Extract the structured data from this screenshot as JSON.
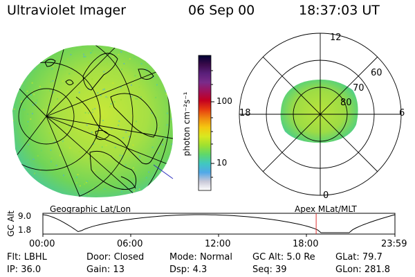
{
  "header": {
    "title": "Ultraviolet Imager",
    "date": "06 Sep 00",
    "time": "18:37:03 UT"
  },
  "colorbar": {
    "label": "photon cm⁻²s⁻¹",
    "ticks": [
      "100",
      "10"
    ],
    "stops": [
      "#000033",
      "#3a0a4a",
      "#5a1f7a",
      "#7a2b8a",
      "#a0115a",
      "#c40020",
      "#e63c10",
      "#f08a10",
      "#f4c810",
      "#d8e820",
      "#9ee030",
      "#5fd86a",
      "#40c8c0",
      "#50a8e8",
      "#c8c8d8",
      "#ffffff"
    ]
  },
  "polar": {
    "labels": {
      "top": "12",
      "bottom": "0",
      "left": "18",
      "right": "6"
    },
    "lat_labels": [
      "60",
      "70",
      "80"
    ]
  },
  "panels": {
    "left_caption": "Geographic Lat/Lon",
    "right_caption": "Apex MLat/MLT"
  },
  "altitude_plot": {
    "ylabel": "GC Alt",
    "yticks": [
      "9.0",
      "1.8"
    ],
    "xticks": [
      "00:00",
      "06:00",
      "12:00",
      "18:00",
      "23:59"
    ],
    "marker_time": "18:37"
  },
  "status": {
    "row1": [
      {
        "label": "Flt:",
        "value": "LBHL"
      },
      {
        "label": "Door:",
        "value": "Closed"
      },
      {
        "label": "Mode:",
        "value": "Normal"
      },
      {
        "label": "GC Alt:",
        "value": "5.0 Re"
      },
      {
        "label": "GLat:",
        "value": "79.7"
      }
    ],
    "row2": [
      {
        "label": "IP:",
        "value": "36.0"
      },
      {
        "label": "Gain:",
        "value": "13"
      },
      {
        "label": "Dsp:",
        "value": "4.3"
      },
      {
        "label": "Seq:",
        "value": "39"
      },
      {
        "label": "GLon:",
        "value": "281.8"
      }
    ]
  },
  "colors": {
    "accent_marker": "#e03030",
    "map_line": "#3030c0",
    "aurora_main": "#a8e040",
    "aurora_edge": "#40c8c0"
  }
}
